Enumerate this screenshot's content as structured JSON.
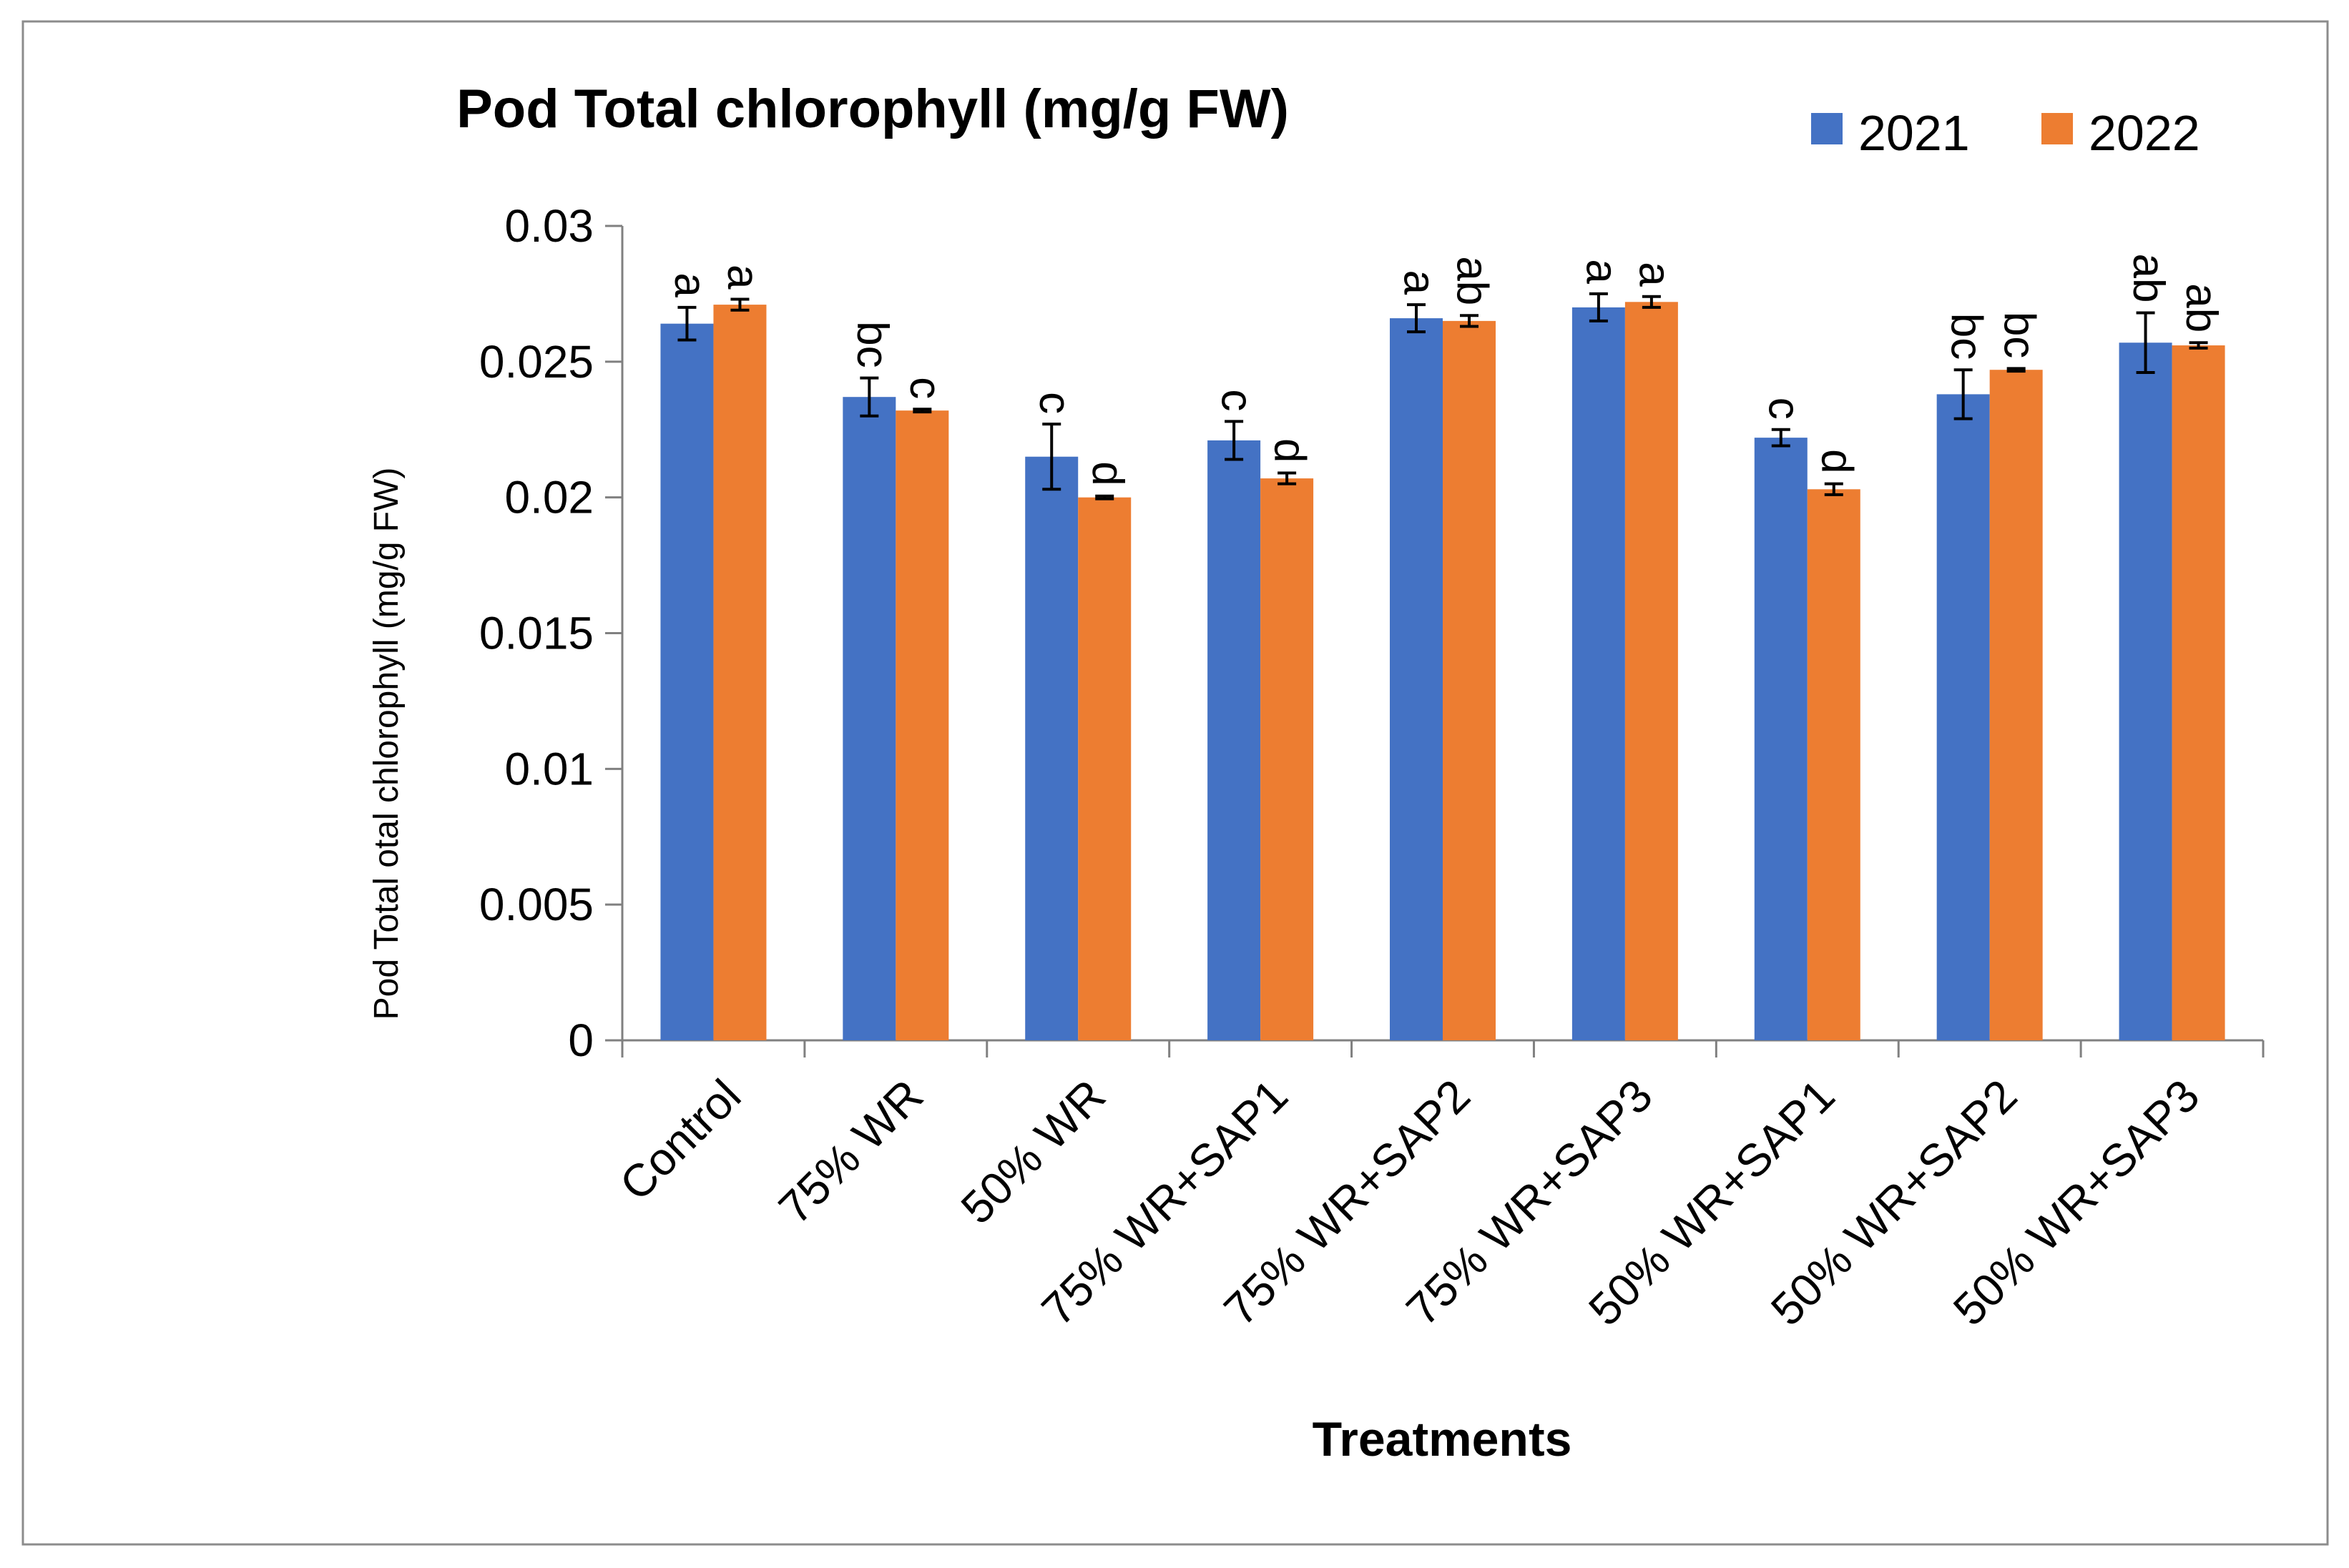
{
  "chart_data": {
    "type": "bar",
    "title": "Pod Total chlorophyll (mg/g FW)",
    "xlabel": "Treatments",
    "ylabel": "Pod Total otal chlorophyll (mg/g FW)",
    "ylim": [
      0,
      0.03
    ],
    "yticks": [
      0,
      0.005,
      0.01,
      0.015,
      0.02,
      0.025,
      0.03
    ],
    "ytick_labels": [
      "0",
      "0.005",
      "0.01",
      "0.015",
      "0.02",
      "0.025",
      "0.03"
    ],
    "grid": false,
    "legend_position": "top-right",
    "categories": [
      "Control",
      "75% WR",
      "50% WR",
      "75% WR+SAP1",
      "75% WR+SAP2",
      "75% WR+SAP3",
      "50% WR+SAP1",
      "50% WR+SAP2",
      "50% WR+SAP3"
    ],
    "series": [
      {
        "name": "2021",
        "color": "#4472C4",
        "values": [
          0.0264,
          0.0237,
          0.0215,
          0.0221,
          0.0266,
          0.027,
          0.0222,
          0.0238,
          0.0257
        ],
        "errors": [
          0.0006,
          0.0007,
          0.0012,
          0.0007,
          0.0005,
          0.0005,
          0.0003,
          0.0009,
          0.0011
        ],
        "letters": [
          "a",
          "bc",
          "c",
          "c",
          "a",
          "a",
          "c",
          "bc",
          "ab"
        ]
      },
      {
        "name": "2022",
        "color": "#ED7D31",
        "values": [
          0.0271,
          0.0232,
          0.02,
          0.0207,
          0.0265,
          0.0272,
          0.0203,
          0.0247,
          0.0256
        ],
        "errors": [
          0.0002,
          5e-05,
          5e-05,
          0.0002,
          0.0002,
          0.0002,
          0.0002,
          5e-05,
          0.0001
        ],
        "letters": [
          "a",
          "c",
          "d",
          "d",
          "ab",
          "a",
          "d",
          "bc",
          "ab"
        ]
      }
    ]
  }
}
